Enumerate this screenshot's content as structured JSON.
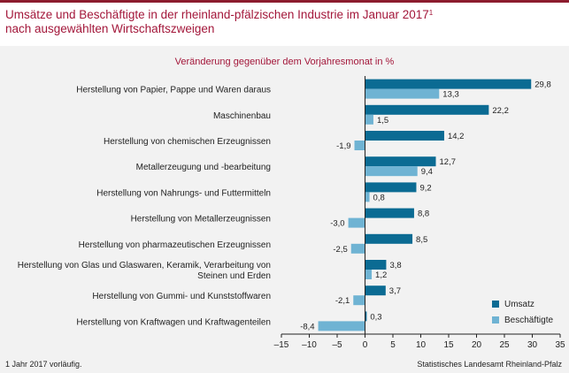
{
  "title": {
    "line1": "Umsätze und Beschäftigte in der rheinland-pfälzischen Industrie im Januar 2017",
    "footnote_mark": "1",
    "line2": "nach ausgewählten Wirtschaftszweigen"
  },
  "chart_data": {
    "type": "bar",
    "orientation": "horizontal",
    "subtitle": "Veränderung gegenüber dem Vorjahresmonat in %",
    "categories": [
      [
        "Herstellung von Papier, Pappe und Waren daraus"
      ],
      [
        "Maschinenbau"
      ],
      [
        "Herstellung von chemischen Erzeugnissen"
      ],
      [
        "Metallerzeugung und -bearbeitung"
      ],
      [
        "Herstellung von Nahrungs- und Futtermitteln"
      ],
      [
        "Herstellung von Metallerzeugnissen"
      ],
      [
        "Herstellung von pharmazeutischen Erzeugnissen"
      ],
      [
        "Herstellung von Glas und Glaswaren, Keramik, Verarbeitung von",
        "Steinen und Erden"
      ],
      [
        "Herstellung von Gummi- und Kunststoffwaren"
      ],
      [
        "Herstellung von Kraftwagen und Kraftwagenteilen"
      ]
    ],
    "series": [
      {
        "name": "Umsatz",
        "color": "#0b6b93",
        "values": [
          29.8,
          22.2,
          14.2,
          12.7,
          9.2,
          8.8,
          8.5,
          3.8,
          3.7,
          0.3
        ],
        "labels": [
          "29,8",
          "22,2",
          "14,2",
          "12,7",
          "9,2",
          "8,8",
          "8,5",
          "3,8",
          "3,7",
          "0,3"
        ]
      },
      {
        "name": "Beschäftigte",
        "color": "#6fb3d3",
        "values": [
          13.3,
          1.5,
          -1.9,
          9.4,
          0.8,
          -3.0,
          -2.5,
          1.2,
          -2.1,
          -8.4
        ],
        "labels": [
          "13,3",
          "1,5",
          "-1,9",
          "9,4",
          "0,8",
          "-3,0",
          "-2,5",
          "1,2",
          "-2,1",
          "-8,4"
        ]
      }
    ],
    "xlim": [
      -15,
      35
    ],
    "xticks": [
      -15,
      -10,
      -5,
      0,
      5,
      10,
      15,
      20,
      25,
      30,
      35
    ],
    "xtick_labels": [
      "–15",
      "–10",
      "–5",
      "0",
      "5",
      "10",
      "15",
      "20",
      "25",
      "30",
      "35"
    ],
    "grid": false,
    "legend_position": "bottom-right"
  },
  "footnote": "1 Jahr 2017 vorläufig.",
  "source": "Statistisches Landesamt Rheinland-Pfalz"
}
